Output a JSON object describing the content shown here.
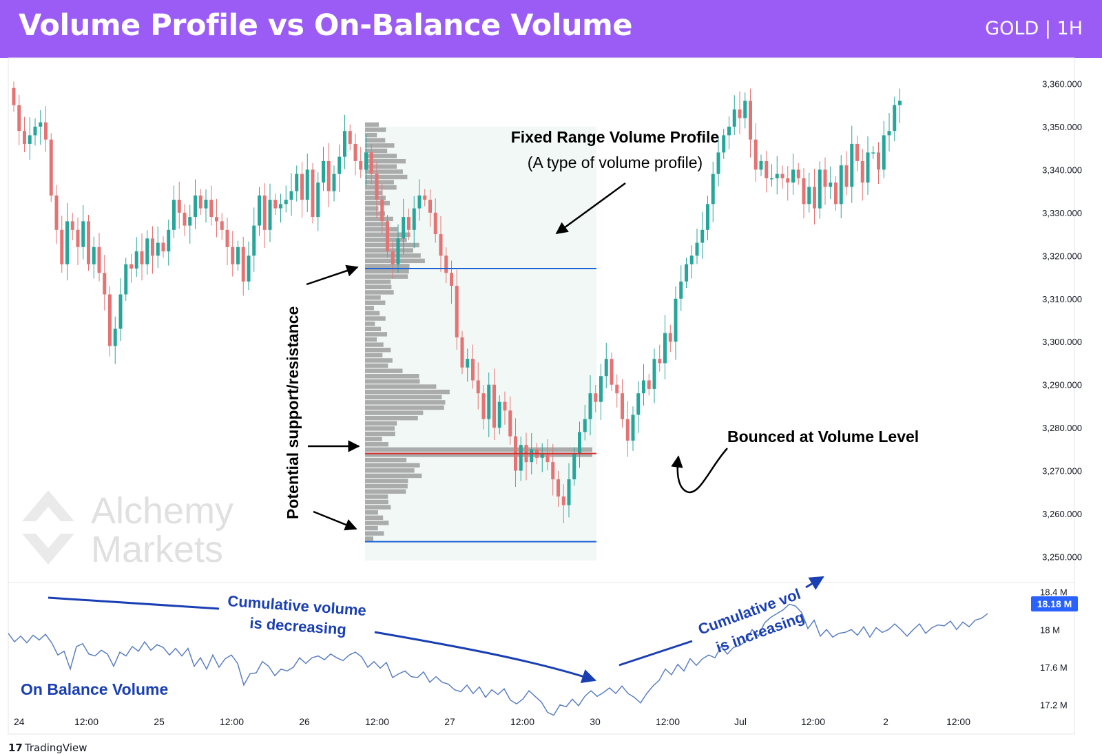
{
  "header": {
    "title": "Volume Profile vs On-Balance Volume",
    "symbol": "GOLD | 1H"
  },
  "colors": {
    "banner": "#9b5cf6",
    "up_candle": "#26a69a",
    "down_candle": "#e57373",
    "profile_bar": "#9e9e9e",
    "profile_bg": "#eef7f5",
    "range_line": "#1e63d6",
    "poc_line": "#d32f2f",
    "obv_line": "#5b7fbf",
    "annotation_blue": "#1a3fb3"
  },
  "watermark": {
    "line1": "Alchemy",
    "line2": "Markets"
  },
  "branding": "TradingView",
  "annotations": {
    "profile_title": "Fixed Range Volume Profile",
    "profile_sub": "(A type of volume profile)",
    "support": "Potential support/resistance",
    "bounce": "Bounced at Volume Level",
    "obv_dec_1": "Cumulative volume",
    "obv_dec_2": "is decreasing",
    "obv_inc_1": "Cumulative vol",
    "obv_inc_2": "is increasing",
    "obv_label": "On Balance Volume"
  },
  "chart_data": [
    {
      "type": "candlestick",
      "title": "GOLD | 1H",
      "y_ticks": [
        "3,360.000",
        "3,350.000",
        "3,340.000",
        "3,330.000",
        "3,320.000",
        "3,310.000",
        "3,300.000",
        "3,290.000",
        "3,280.000",
        "3,270.000",
        "3,260.000",
        "3,250.000"
      ],
      "y_tick_values": [
        3360,
        3350,
        3340,
        3330,
        3320,
        3310,
        3300,
        3290,
        3280,
        3270,
        3260,
        3250
      ],
      "ylim": [
        3244,
        3366
      ],
      "close": [
        3355,
        3349,
        3346,
        3348,
        3350,
        3351,
        3347,
        3334,
        3326,
        3318,
        3328,
        3326,
        3322,
        3328,
        3318,
        3322,
        3316,
        3311,
        3299,
        3303,
        3311,
        3318,
        3317,
        3321,
        3318,
        3324,
        3320,
        3323,
        3321,
        3326,
        3333,
        3330,
        3327,
        3329,
        3334,
        3331,
        3333,
        3329,
        3328,
        3326,
        3322,
        3318,
        3322,
        3314,
        3320,
        3327,
        3334,
        3326,
        3333,
        3331,
        3332,
        3333,
        3335,
        3339,
        3333,
        3340,
        3329,
        3337,
        3342,
        3335,
        3339,
        3343,
        3349,
        3346,
        3342,
        3340,
        3344,
        3339,
        3333,
        3328,
        3321,
        3318,
        3324,
        3329,
        3326,
        3331,
        3334,
        3333,
        3330,
        3325,
        3320,
        3316,
        3313,
        3301,
        3294,
        3296,
        3291,
        3288,
        3282,
        3290,
        3280,
        3286,
        3284,
        3278,
        3270,
        3276,
        3272,
        3275,
        3273,
        3274,
        3272,
        3268,
        3264,
        3262,
        3268,
        3274,
        3279,
        3282,
        3288,
        3286,
        3292,
        3296,
        3290,
        3288,
        3282,
        3277,
        3283,
        3288,
        3291,
        3289,
        3296,
        3295,
        3302,
        3300,
        3310,
        3314,
        3318,
        3320,
        3323,
        3326,
        3332,
        3339,
        3344,
        3348,
        3350,
        3354,
        3352,
        3356,
        3347,
        3340,
        3342,
        3338,
        3338,
        3339,
        3338,
        3337,
        3340,
        3338,
        3332,
        3336,
        3331,
        3340,
        3336,
        3337,
        3332,
        3341,
        3336,
        3346,
        3342,
        3337,
        3344,
        3344,
        3340,
        3348,
        3349,
        3355,
        3356
      ],
      "volume_profile": {
        "price_low": 3253.5,
        "price_high": 3351,
        "poc": 3274,
        "value_area_high": 3317,
        "value_area_low": 3253.5
      },
      "annotations": [
        "Fixed Range Volume Profile",
        "(A type of volume profile)",
        "Potential support/resistance",
        "Bounced at Volume Level"
      ]
    },
    {
      "type": "line",
      "title": "On Balance Volume",
      "y_ticks": [
        "18.4 M",
        "18 M",
        "17.6 M",
        "17.2 M"
      ],
      "y_tick_values": [
        18.4,
        18.0,
        17.6,
        17.2
      ],
      "current_value": "18.18 M",
      "ylim": [
        17.08,
        18.5
      ],
      "x_tick_labels": [
        "24",
        "12:00",
        "25",
        "12:00",
        "26",
        "12:00",
        "27",
        "12:00",
        "30",
        "12:00",
        "Jul",
        "12:00",
        "2",
        "12:00"
      ],
      "values": [
        17.96,
        17.87,
        17.93,
        17.86,
        17.94,
        17.89,
        17.95,
        17.86,
        17.73,
        17.77,
        17.58,
        17.82,
        17.85,
        17.74,
        17.72,
        17.78,
        17.74,
        17.61,
        17.76,
        17.72,
        17.82,
        17.77,
        17.87,
        17.78,
        17.84,
        17.81,
        17.73,
        17.8,
        17.72,
        17.8,
        17.61,
        17.7,
        17.58,
        17.73,
        17.6,
        17.69,
        17.73,
        17.64,
        17.41,
        17.53,
        17.54,
        17.66,
        17.61,
        17.51,
        17.58,
        17.56,
        17.6,
        17.7,
        17.64,
        17.7,
        17.72,
        17.68,
        17.74,
        17.7,
        17.67,
        17.73,
        17.76,
        17.71,
        17.6,
        17.66,
        17.59,
        17.65,
        17.49,
        17.53,
        17.56,
        17.5,
        17.49,
        17.55,
        17.44,
        17.5,
        17.44,
        17.42,
        17.36,
        17.34,
        17.41,
        17.32,
        17.39,
        17.28,
        17.36,
        17.31,
        17.37,
        17.25,
        17.21,
        17.26,
        17.35,
        17.29,
        17.23,
        17.12,
        17.09,
        17.2,
        17.18,
        17.26,
        17.19,
        17.29,
        17.35,
        17.29,
        17.33,
        17.38,
        17.32,
        17.4,
        17.32,
        17.28,
        17.22,
        17.32,
        17.4,
        17.46,
        17.58,
        17.52,
        17.63,
        17.56,
        17.69,
        17.62,
        17.69,
        17.73,
        17.7,
        17.82,
        17.74,
        17.81,
        17.83,
        17.88,
        18.0,
        17.93,
        18.07,
        18.13,
        18.17,
        18.21,
        18.27,
        18.25,
        18.18,
        18.01,
        18.1,
        17.93,
        18.0,
        17.92,
        17.96,
        17.97,
        18.0,
        17.94,
        18.03,
        17.92,
        18.02,
        17.97,
        18.0,
        18.06,
        18.0,
        17.93,
        18.0,
        18.06,
        17.96,
        18.02,
        18.05,
        18.04,
        18.09,
        18.0,
        18.08,
        18.03,
        18.1,
        18.12,
        18.17
      ]
    }
  ]
}
